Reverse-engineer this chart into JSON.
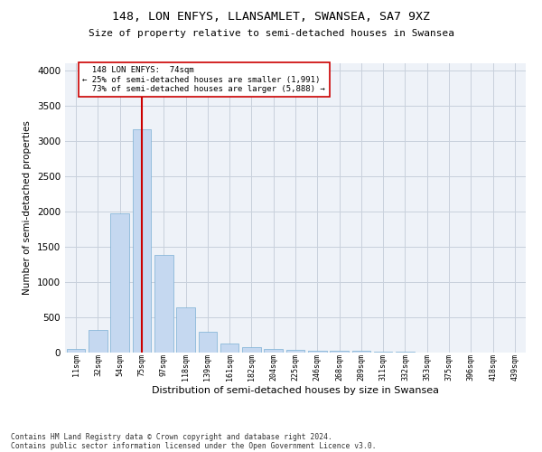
{
  "title": "148, LON ENFYS, LLANSAMLET, SWANSEA, SA7 9XZ",
  "subtitle": "Size of property relative to semi-detached houses in Swansea",
  "xlabel": "Distribution of semi-detached houses by size in Swansea",
  "ylabel": "Number of semi-detached properties",
  "categories": [
    "11sqm",
    "32sqm",
    "54sqm",
    "75sqm",
    "97sqm",
    "118sqm",
    "139sqm",
    "161sqm",
    "182sqm",
    "204sqm",
    "225sqm",
    "246sqm",
    "268sqm",
    "289sqm",
    "311sqm",
    "332sqm",
    "353sqm",
    "375sqm",
    "396sqm",
    "418sqm",
    "439sqm"
  ],
  "values": [
    45,
    320,
    1970,
    3160,
    1390,
    640,
    300,
    130,
    75,
    50,
    40,
    30,
    25,
    20,
    15,
    10,
    5,
    5,
    3,
    2,
    2
  ],
  "bar_color": "#c5d8f0",
  "bar_edge_color": "#7bafd4",
  "property_label": "148 LON ENFYS:  74sqm",
  "pct_smaller": 25,
  "pct_smaller_count": "1,991",
  "pct_larger": 73,
  "pct_larger_count": "5,888",
  "vline_x_index": 3,
  "vline_color": "#cc0000",
  "annotation_box_edge": "#cc0000",
  "ylim": [
    0,
    4100
  ],
  "yticks": [
    0,
    500,
    1000,
    1500,
    2000,
    2500,
    3000,
    3500,
    4000
  ],
  "grid_color": "#c8d0dc",
  "bg_color": "#eef2f8",
  "footer1": "Contains HM Land Registry data © Crown copyright and database right 2024.",
  "footer2": "Contains public sector information licensed under the Open Government Licence v3.0."
}
